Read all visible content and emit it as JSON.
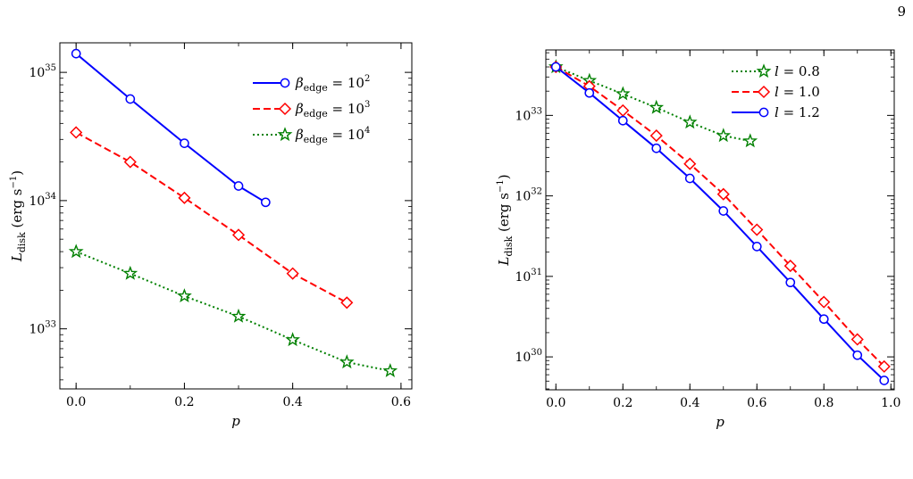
{
  "page_number": "9",
  "chart_data": [
    {
      "type": "line",
      "title": "",
      "xlabel": "p",
      "ylabel_main": "L",
      "ylabel_sub": "disk",
      "ylabel_units": "(erg s",
      "ylabel_units_exp": "−1",
      "ylabel_units_close": ")",
      "yscale": "log",
      "xlim": [
        -0.03,
        0.62
      ],
      "ylim": [
        3.4e+32,
        1.7e+35
      ],
      "xticks": [
        0.0,
        0.2,
        0.4,
        0.6
      ],
      "xticklabels": [
        "0.0",
        "0.2",
        "0.4",
        "0.6"
      ],
      "yticks": [
        1e+33,
        1e+34,
        1e+35
      ],
      "yticklabels": [
        {
          "base": "10",
          "exp": "33"
        },
        {
          "base": "10",
          "exp": "34"
        },
        {
          "base": "10",
          "exp": "35"
        }
      ],
      "grid": false,
      "legend_position": "top-right",
      "series": [
        {
          "name_main": "β",
          "name_sub": "edge",
          "name_rest": " = 10",
          "name_exp": "2",
          "color": "#0000ff",
          "dash": "solid",
          "marker": "circle",
          "x": [
            0.0,
            0.1,
            0.2,
            0.3,
            0.35
          ],
          "y": [
            1.4e+35,
            6.2e+34,
            2.8e+34,
            1.3e+34,
            9.7e+33
          ]
        },
        {
          "name_main": "β",
          "name_sub": "edge",
          "name_rest": " = 10",
          "name_exp": "3",
          "color": "#ff0000",
          "dash": "dashed",
          "marker": "diamond",
          "x": [
            0.0,
            0.1,
            0.2,
            0.3,
            0.4,
            0.5
          ],
          "y": [
            3.4e+34,
            2e+34,
            1.05e+34,
            5.4e+33,
            2.7e+33,
            1.6e+33
          ]
        },
        {
          "name_main": "β",
          "name_sub": "edge",
          "name_rest": " = 10",
          "name_exp": "4",
          "color": "#008000",
          "dash": "dotted",
          "marker": "star",
          "x": [
            0.0,
            0.1,
            0.2,
            0.3,
            0.4,
            0.5,
            0.58
          ],
          "y": [
            4e+33,
            2.7e+33,
            1.8e+33,
            1.25e+33,
            8.2e+32,
            5.5e+32,
            4.7e+32
          ]
        }
      ]
    },
    {
      "type": "line",
      "title": "",
      "xlabel": "p",
      "ylabel_main": "L",
      "ylabel_sub": "disk",
      "ylabel_units": "(erg s",
      "ylabel_units_exp": "−1",
      "ylabel_units_close": ")",
      "yscale": "log",
      "xlim": [
        -0.03,
        1.01
      ],
      "ylim": [
        3.9e+29,
        6.5e+33
      ],
      "xticks": [
        0.0,
        0.2,
        0.4,
        0.6,
        0.8,
        1.0
      ],
      "xticklabels": [
        "0.0",
        "0.2",
        "0.4",
        "0.6",
        "0.8",
        "1.0"
      ],
      "yticks": [
        1e+30,
        1e+31,
        1e+32,
        1e+33
      ],
      "yticklabels": [
        {
          "base": "10",
          "exp": "30"
        },
        {
          "base": "10",
          "exp": "31"
        },
        {
          "base": "10",
          "exp": "32"
        },
        {
          "base": "10",
          "exp": "33"
        }
      ],
      "grid": false,
      "legend_position": "top-right",
      "series": [
        {
          "name_main": "l",
          "name_sub": "",
          "name_rest": " = 0.8",
          "name_exp": "",
          "color": "#008000",
          "dash": "dotted",
          "marker": "star",
          "x": [
            0.0,
            0.1,
            0.2,
            0.3,
            0.4,
            0.5,
            0.58
          ],
          "y": [
            4e+33,
            2.7e+33,
            1.85e+33,
            1.25e+33,
            8.2e+32,
            5.6e+32,
            4.8e+32
          ]
        },
        {
          "name_main": "l",
          "name_sub": "",
          "name_rest": " = 1.0",
          "name_exp": "",
          "color": "#ff0000",
          "dash": "dashed",
          "marker": "diamond",
          "x": [
            0.0,
            0.1,
            0.2,
            0.3,
            0.4,
            0.5,
            0.6,
            0.7,
            0.8,
            0.9,
            0.98
          ],
          "y": [
            4e+33,
            2.3e+33,
            1.15e+33,
            5.6e+32,
            2.5e+32,
            1.05e+32,
            3.8e+31,
            1.35e+31,
            4.8e+30,
            1.65e+30,
            7.6e+29
          ]
        },
        {
          "name_main": "l",
          "name_sub": "",
          "name_rest": " = 1.2",
          "name_exp": "",
          "color": "#0000ff",
          "dash": "solid",
          "marker": "circle",
          "x": [
            0.0,
            0.1,
            0.2,
            0.3,
            0.4,
            0.5,
            0.6,
            0.7,
            0.8,
            0.9,
            0.98
          ],
          "y": [
            4e+33,
            1.9e+33,
            8.6e+32,
            3.9e+32,
            1.65e+32,
            6.5e+31,
            2.35e+31,
            8.4e+30,
            2.95e+30,
            1.05e+30,
            5.1e+29
          ]
        }
      ]
    }
  ]
}
